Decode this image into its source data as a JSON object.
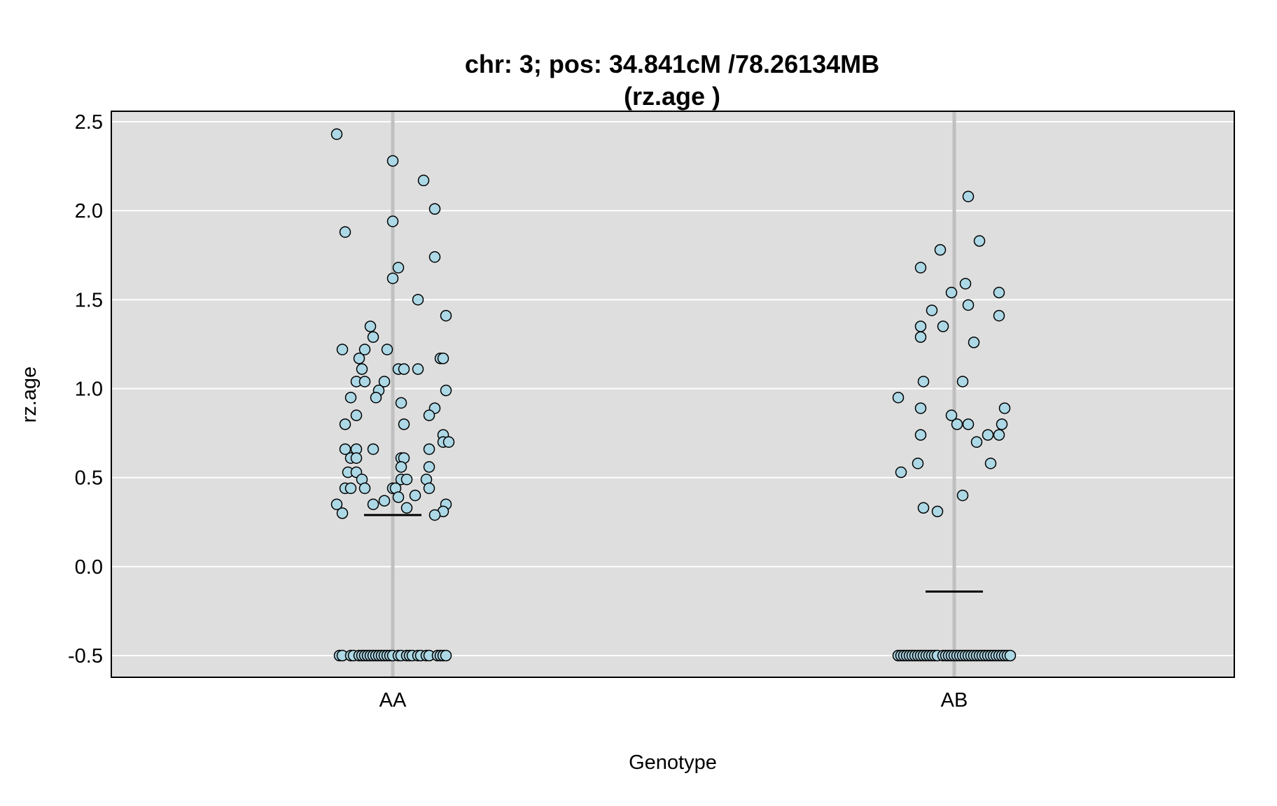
{
  "chart_data": {
    "type": "scatter",
    "title": "chr: 3; pos: 34.841cM /78.26134MB",
    "subtitle": "(rz.age )",
    "xlabel": "Genotype",
    "ylabel": "rz.age",
    "categories": [
      "AA",
      "AB"
    ],
    "ylim": [
      -0.62,
      2.55
    ],
    "yticks": [
      "2.5",
      "2.0",
      "1.5",
      "1.0",
      "0.5",
      "0.0",
      "-0.5"
    ],
    "grid": true,
    "colors": {
      "panel": "#dedede",
      "grid": "#ffffff",
      "category_line": "#c0c0c0",
      "point_fill": "#add8e6",
      "point_stroke": "#000000",
      "mean_line": "#000000"
    },
    "series": [
      {
        "category": "AA",
        "mean": 0.29,
        "points": [
          [
            -0.2,
            2.43
          ],
          [
            0.0,
            2.28
          ],
          [
            0.11,
            2.17
          ],
          [
            0.15,
            2.01
          ],
          [
            0.0,
            1.94
          ],
          [
            -0.17,
            1.88
          ],
          [
            0.15,
            1.74
          ],
          [
            0.02,
            1.68
          ],
          [
            0.0,
            1.62
          ],
          [
            0.09,
            1.5
          ],
          [
            0.19,
            1.41
          ],
          [
            -0.08,
            1.35
          ],
          [
            -0.07,
            1.29
          ],
          [
            -0.18,
            1.22
          ],
          [
            -0.1,
            1.22
          ],
          [
            -0.02,
            1.22
          ],
          [
            -0.12,
            1.17
          ],
          [
            0.17,
            1.17
          ],
          [
            0.18,
            1.17
          ],
          [
            -0.11,
            1.11
          ],
          [
            0.02,
            1.11
          ],
          [
            0.04,
            1.11
          ],
          [
            0.09,
            1.11
          ],
          [
            -0.13,
            1.04
          ],
          [
            -0.1,
            1.04
          ],
          [
            -0.03,
            1.04
          ],
          [
            -0.05,
            0.99
          ],
          [
            0.19,
            0.99
          ],
          [
            -0.15,
            0.95
          ],
          [
            -0.06,
            0.95
          ],
          [
            0.03,
            0.92
          ],
          [
            0.15,
            0.89
          ],
          [
            -0.13,
            0.85
          ],
          [
            0.13,
            0.85
          ],
          [
            -0.17,
            0.8
          ],
          [
            0.04,
            0.8
          ],
          [
            0.18,
            0.74
          ],
          [
            0.18,
            0.7
          ],
          [
            0.2,
            0.7
          ],
          [
            -0.17,
            0.66
          ],
          [
            -0.13,
            0.66
          ],
          [
            -0.07,
            0.66
          ],
          [
            0.13,
            0.66
          ],
          [
            -0.15,
            0.61
          ],
          [
            -0.13,
            0.61
          ],
          [
            0.03,
            0.61
          ],
          [
            0.04,
            0.61
          ],
          [
            0.03,
            0.56
          ],
          [
            0.13,
            0.56
          ],
          [
            -0.16,
            0.53
          ],
          [
            -0.13,
            0.53
          ],
          [
            -0.11,
            0.49
          ],
          [
            0.03,
            0.49
          ],
          [
            0.05,
            0.49
          ],
          [
            0.12,
            0.49
          ],
          [
            -0.17,
            0.44
          ],
          [
            -0.15,
            0.44
          ],
          [
            -0.1,
            0.44
          ],
          [
            0.0,
            0.44
          ],
          [
            0.01,
            0.44
          ],
          [
            0.13,
            0.44
          ],
          [
            0.08,
            0.4
          ],
          [
            0.02,
            0.39
          ],
          [
            -0.03,
            0.37
          ],
          [
            -0.2,
            0.35
          ],
          [
            -0.07,
            0.35
          ],
          [
            0.19,
            0.35
          ],
          [
            0.05,
            0.33
          ],
          [
            0.18,
            0.31
          ],
          [
            -0.18,
            0.3
          ],
          [
            0.15,
            0.29
          ],
          [
            -0.19,
            -0.5
          ],
          [
            -0.18,
            -0.5
          ],
          [
            -0.15,
            -0.5
          ],
          [
            -0.14,
            -0.5
          ],
          [
            -0.12,
            -0.5
          ],
          [
            -0.11,
            -0.5
          ],
          [
            -0.1,
            -0.5
          ],
          [
            -0.09,
            -0.5
          ],
          [
            -0.08,
            -0.5
          ],
          [
            -0.07,
            -0.5
          ],
          [
            -0.06,
            -0.5
          ],
          [
            -0.05,
            -0.5
          ],
          [
            -0.04,
            -0.5
          ],
          [
            -0.03,
            -0.5
          ],
          [
            -0.02,
            -0.5
          ],
          [
            -0.01,
            -0.5
          ],
          [
            0.0,
            -0.5
          ],
          [
            0.02,
            -0.5
          ],
          [
            0.03,
            -0.5
          ],
          [
            0.05,
            -0.5
          ],
          [
            0.06,
            -0.5
          ],
          [
            0.07,
            -0.5
          ],
          [
            0.09,
            -0.5
          ],
          [
            0.1,
            -0.5
          ],
          [
            0.12,
            -0.5
          ],
          [
            0.13,
            -0.5
          ],
          [
            0.16,
            -0.5
          ],
          [
            0.17,
            -0.5
          ],
          [
            0.18,
            -0.5
          ],
          [
            0.19,
            -0.5
          ]
        ]
      },
      {
        "category": "AB",
        "mean": -0.14,
        "points": [
          [
            0.05,
            2.08
          ],
          [
            0.09,
            1.83
          ],
          [
            -0.05,
            1.78
          ],
          [
            -0.12,
            1.68
          ],
          [
            0.04,
            1.59
          ],
          [
            -0.01,
            1.54
          ],
          [
            0.16,
            1.54
          ],
          [
            0.05,
            1.47
          ],
          [
            -0.08,
            1.44
          ],
          [
            0.16,
            1.41
          ],
          [
            -0.12,
            1.35
          ],
          [
            -0.04,
            1.35
          ],
          [
            -0.12,
            1.29
          ],
          [
            0.07,
            1.26
          ],
          [
            -0.11,
            1.04
          ],
          [
            0.03,
            1.04
          ],
          [
            -0.2,
            0.95
          ],
          [
            -0.12,
            0.89
          ],
          [
            0.18,
            0.89
          ],
          [
            -0.01,
            0.85
          ],
          [
            0.01,
            0.8
          ],
          [
            0.05,
            0.8
          ],
          [
            0.17,
            0.8
          ],
          [
            -0.12,
            0.74
          ],
          [
            0.12,
            0.74
          ],
          [
            0.16,
            0.74
          ],
          [
            0.08,
            0.7
          ],
          [
            -0.13,
            0.58
          ],
          [
            0.13,
            0.58
          ],
          [
            -0.19,
            0.53
          ],
          [
            0.03,
            0.4
          ],
          [
            -0.11,
            0.33
          ],
          [
            -0.06,
            0.31
          ],
          [
            -0.2,
            -0.5
          ],
          [
            -0.19,
            -0.5
          ],
          [
            -0.18,
            -0.5
          ],
          [
            -0.17,
            -0.5
          ],
          [
            -0.16,
            -0.5
          ],
          [
            -0.15,
            -0.5
          ],
          [
            -0.14,
            -0.5
          ],
          [
            -0.13,
            -0.5
          ],
          [
            -0.12,
            -0.5
          ],
          [
            -0.11,
            -0.5
          ],
          [
            -0.1,
            -0.5
          ],
          [
            -0.09,
            -0.5
          ],
          [
            -0.08,
            -0.5
          ],
          [
            -0.07,
            -0.5
          ],
          [
            -0.06,
            -0.5
          ],
          [
            -0.04,
            -0.5
          ],
          [
            -0.03,
            -0.5
          ],
          [
            -0.02,
            -0.5
          ],
          [
            -0.01,
            -0.5
          ],
          [
            0.0,
            -0.5
          ],
          [
            0.01,
            -0.5
          ],
          [
            0.02,
            -0.5
          ],
          [
            0.03,
            -0.5
          ],
          [
            0.04,
            -0.5
          ],
          [
            0.05,
            -0.5
          ],
          [
            0.06,
            -0.5
          ],
          [
            0.07,
            -0.5
          ],
          [
            0.08,
            -0.5
          ],
          [
            0.09,
            -0.5
          ],
          [
            0.1,
            -0.5
          ],
          [
            0.11,
            -0.5
          ],
          [
            0.12,
            -0.5
          ],
          [
            0.13,
            -0.5
          ],
          [
            0.14,
            -0.5
          ],
          [
            0.15,
            -0.5
          ],
          [
            0.16,
            -0.5
          ],
          [
            0.17,
            -0.5
          ],
          [
            0.18,
            -0.5
          ],
          [
            0.19,
            -0.5
          ],
          [
            0.2,
            -0.5
          ]
        ]
      }
    ]
  }
}
